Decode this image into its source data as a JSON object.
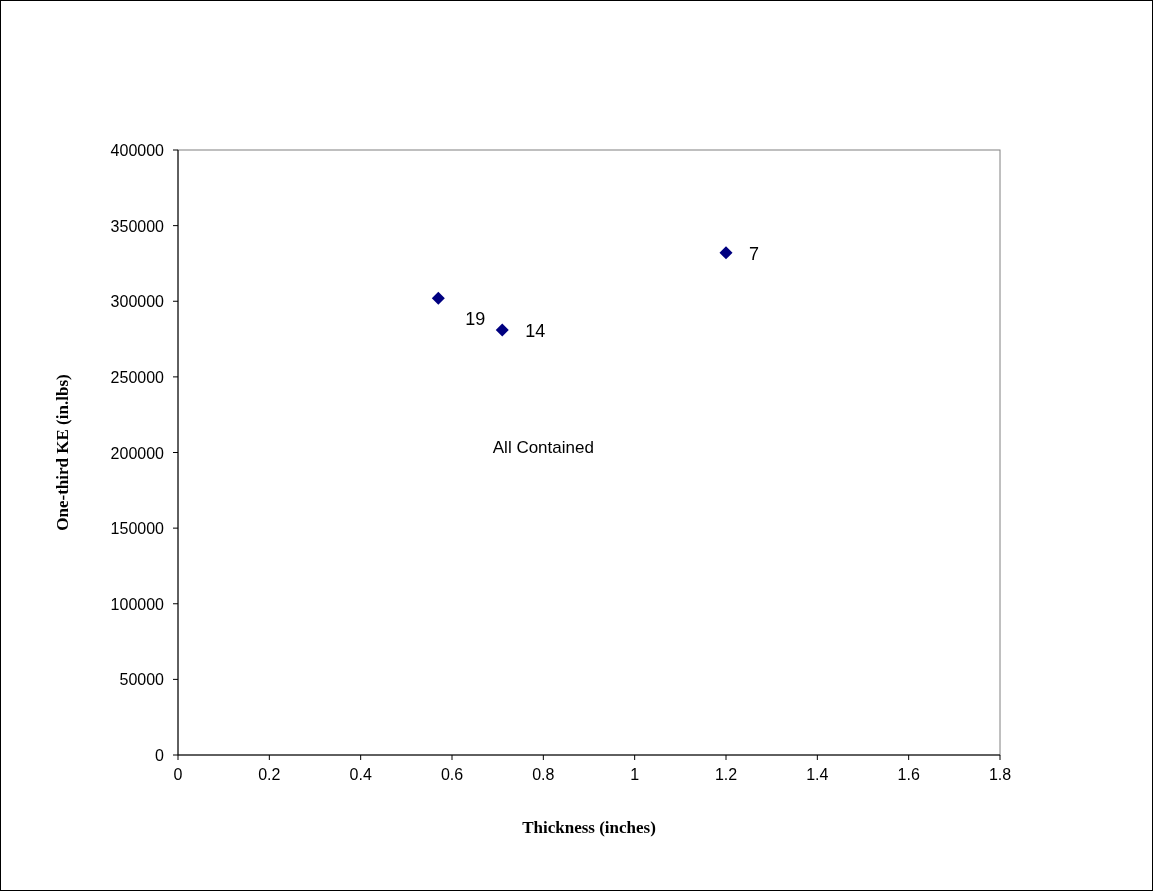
{
  "chart_data": {
    "type": "scatter",
    "xlabel": "Thickness (inches)",
    "ylabel": "One-third KE (in.lbs)",
    "x": [
      0.57,
      0.71,
      1.2
    ],
    "values": [
      302000,
      281000,
      332000
    ],
    "color": "#000080",
    "marker": "diamond",
    "xlim": [
      0,
      1.8
    ],
    "xticks": [
      0,
      0.2,
      0.4,
      0.6,
      0.8,
      1,
      1.2,
      1.4,
      1.6,
      1.8
    ],
    "ylim": [
      0,
      400000
    ],
    "yticks": [
      0,
      50000,
      100000,
      150000,
      200000,
      250000,
      300000,
      350000,
      400000
    ],
    "annotations": [
      {
        "text": "19",
        "x": 0.57,
        "y": 302000
      },
      {
        "text": "14",
        "x": 0.71,
        "y": 281000
      },
      {
        "text": "7",
        "x": 1.2,
        "y": 332000
      },
      "All Contained"
    ]
  }
}
